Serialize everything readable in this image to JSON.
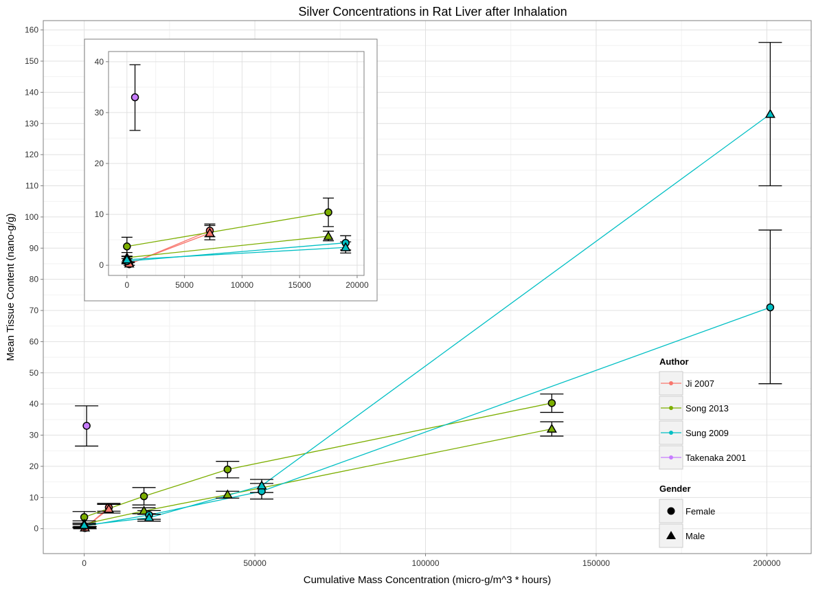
{
  "chart_data": [
    {
      "type": "scatter",
      "title": "Silver Concentrations in Rat Liver after Inhalation",
      "xlabel": "Cumulative Mass Concentration (micro-g/m^3 * hours)",
      "ylabel": "Mean Tissue Content (nano-g/g)",
      "xlim": [
        -12000,
        213000
      ],
      "ylim": [
        -8,
        163
      ],
      "xticks": [
        0,
        50000,
        100000,
        150000,
        200000
      ],
      "yticks": [
        0,
        10,
        20,
        30,
        40,
        50,
        60,
        70,
        80,
        90,
        100,
        110,
        120,
        130,
        140,
        150,
        160
      ],
      "grid": true,
      "legend_position": "right",
      "author_legend": {
        "title": "Author",
        "entries": [
          {
            "name": "Ji 2007",
            "color": "#F8766D"
          },
          {
            "name": "Song 2013",
            "color": "#7CAE00"
          },
          {
            "name": "Sung 2009",
            "color": "#00BFC4"
          },
          {
            "name": "Takenaka 2001",
            "color": "#C77CFF"
          }
        ]
      },
      "gender_legend": {
        "title": "Gender",
        "entries": [
          {
            "name": "Female",
            "shape": "circle"
          },
          {
            "name": "Male",
            "shape": "triangle"
          }
        ]
      },
      "series": [
        {
          "author": "Ji 2007",
          "gender": "Female",
          "color": "#F8766D",
          "points": [
            {
              "x": 200,
              "y": 0.2,
              "err": [
                0,
                0.5
              ]
            },
            {
              "x": 7200,
              "y": 6.8,
              "err": [
                5.6,
                8.1
              ]
            }
          ]
        },
        {
          "author": "Ji 2007",
          "gender": "Male",
          "color": "#F8766D",
          "points": [
            {
              "x": 200,
              "y": 0.3,
              "err": [
                0,
                0.7
              ]
            },
            {
              "x": 7200,
              "y": 6.3,
              "err": [
                5.0,
                7.8
              ]
            }
          ]
        },
        {
          "author": "Song 2013",
          "gender": "Female",
          "color": "#7CAE00",
          "points": [
            {
              "x": 0,
              "y": 3.7,
              "err": [
                1.8,
                5.5
              ]
            },
            {
              "x": 17500,
              "y": 10.4,
              "err": [
                7.6,
                13.2
              ]
            },
            {
              "x": 42000,
              "y": 19.0,
              "err": [
                16.3,
                21.6
              ]
            },
            {
              "x": 137000,
              "y": 40.3,
              "err": [
                37.3,
                43.2
              ]
            }
          ]
        },
        {
          "author": "Song 2013",
          "gender": "Male",
          "color": "#7CAE00",
          "points": [
            {
              "x": 0,
              "y": 1.5,
              "err": [
                0.3,
                2.5
              ]
            },
            {
              "x": 17500,
              "y": 5.7,
              "err": [
                4.8,
                6.7
              ]
            },
            {
              "x": 42000,
              "y": 10.9,
              "err": [
                9.8,
                12.0
              ]
            },
            {
              "x": 137000,
              "y": 32.0,
              "err": [
                29.7,
                34.3
              ]
            }
          ]
        },
        {
          "author": "Sung 2009",
          "gender": "Female",
          "color": "#00BFC4",
          "points": [
            {
              "x": 0,
              "y": 0.8,
              "err": [
                0.3,
                1.3
              ]
            },
            {
              "x": 19000,
              "y": 4.4,
              "err": [
                3.0,
                5.8
              ]
            },
            {
              "x": 52000,
              "y": 12.0,
              "err": [
                9.5,
                14.5
              ]
            },
            {
              "x": 201000,
              "y": 71.0,
              "err": [
                46.5,
                95.8
              ]
            }
          ]
        },
        {
          "author": "Sung 2009",
          "gender": "Male",
          "color": "#00BFC4",
          "points": [
            {
              "x": 0,
              "y": 1.1,
              "err": [
                0.6,
                1.7
              ]
            },
            {
              "x": 19000,
              "y": 3.5,
              "err": [
                2.4,
                4.6
              ]
            },
            {
              "x": 52000,
              "y": 13.8,
              "err": [
                11.6,
                15.8
              ]
            },
            {
              "x": 201000,
              "y": 133.0,
              "err": [
                110.0,
                156.0
              ]
            }
          ]
        },
        {
          "author": "Takenaka 2001",
          "gender": "Female",
          "color": "#C77CFF",
          "points": [
            {
              "x": 700,
              "y": 33.0,
              "err": [
                26.5,
                39.4
              ]
            }
          ]
        }
      ]
    },
    {
      "type": "scatter",
      "title": "",
      "xlabel": "",
      "ylabel": "",
      "xlim": [
        -1600,
        20600
      ],
      "ylim": [
        -2,
        42
      ],
      "xticks": [
        0,
        5000,
        10000,
        15000,
        20000
      ],
      "yticks": [
        0,
        10,
        20,
        30,
        40
      ],
      "grid": true,
      "series_source": "same series as main chart, x <= 20000"
    }
  ]
}
